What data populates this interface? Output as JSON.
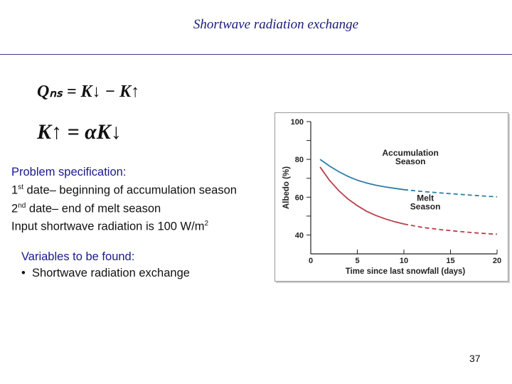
{
  "slide": {
    "title": "Shortwave radiation exchange",
    "eq1": "Qₙₛ = K↓ − K↑",
    "eq2": "K↑ = αK↓",
    "spec_heading": "Problem specification:",
    "spec_line1_sup": "st",
    "spec_line1_num": "1",
    "spec_line1_text": " date– beginning of accumulation season",
    "spec_line2_num": "2",
    "spec_line2_sup": "nd",
    "spec_line2_text": " date– end of melt season",
    "spec_line3_text": "Input shortwave radiation is 100 W/m",
    "spec_line3_sup": "2",
    "vars_heading": "Variables to be found:",
    "vars_item": "Shortwave radiation exchange",
    "page_number": "37"
  },
  "chart_data": {
    "type": "line",
    "xlabel": "Time since last snowfall (days)",
    "ylabel": "Albedo (%)",
    "xlim": [
      0,
      20
    ],
    "ylim": [
      30,
      100
    ],
    "xticks": [
      0,
      5,
      10,
      15,
      20
    ],
    "yticks": [
      40,
      60,
      80,
      100
    ],
    "grid": false,
    "colors": {
      "accumulation": "#2a7fa8",
      "melt": "#b8404a"
    },
    "series": [
      {
        "name": "Accumulation Season",
        "x": [
          1,
          2,
          3,
          4,
          5,
          6,
          7,
          8,
          9,
          10,
          12,
          14,
          16,
          18,
          20
        ],
        "values": [
          80,
          76.5,
          73.5,
          71,
          69,
          67.5,
          66.3,
          65.4,
          64.7,
          64,
          63,
          62.2,
          61.5,
          60.8,
          60.2
        ],
        "solid_until": 10
      },
      {
        "name": "Melt Season",
        "x": [
          1,
          2,
          3,
          4,
          5,
          6,
          7,
          8,
          9,
          10,
          12,
          14,
          16,
          18,
          20
        ],
        "values": [
          76,
          69,
          63.5,
          59,
          55.5,
          52.5,
          50.3,
          48.5,
          47,
          45.8,
          44,
          42.8,
          41.8,
          41,
          40.4
        ],
        "solid_until": 10
      }
    ],
    "labels": {
      "accumulation": [
        "Accumulation",
        "Season"
      ],
      "melt": [
        "Melt",
        "Season"
      ]
    }
  }
}
